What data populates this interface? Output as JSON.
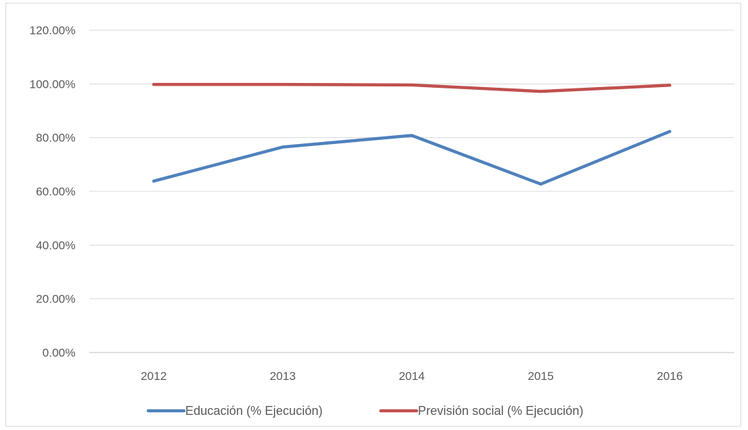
{
  "chart_data": {
    "type": "line",
    "categories": [
      "2012",
      "2013",
      "2014",
      "2015",
      "2016"
    ],
    "series": [
      {
        "name": "Educación (% Ejecución)",
        "color": "#4f81bd",
        "values": [
          63.8,
          76.5,
          80.8,
          62.7,
          82.3
        ]
      },
      {
        "name": "Previsión social (% Ejecución)",
        "color": "#c0504d",
        "values": [
          99.8,
          99.8,
          99.6,
          97.2,
          99.5
        ]
      }
    ],
    "ylim": [
      0,
      120
    ],
    "yticks": [
      "0.00%",
      "20.00%",
      "40.00%",
      "60.00%",
      "80.00%",
      "100.00%",
      "120.00%"
    ],
    "grid": true,
    "legend": "bottom"
  }
}
